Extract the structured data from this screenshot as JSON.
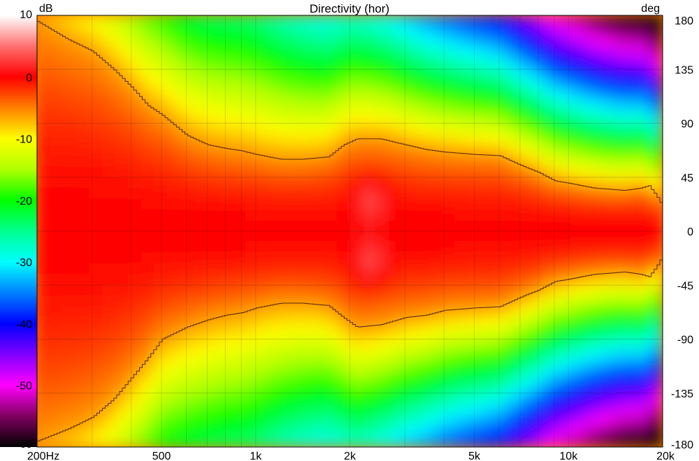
{
  "chart_data": {
    "type": "heatmap",
    "title": "Directivity (hor)",
    "colorbar_unit": "dB",
    "right_axis_unit": "deg",
    "x_scale": "log",
    "xlim": [
      200,
      20000
    ],
    "ylim": [
      -180,
      180
    ],
    "colorbar_range": [
      -60,
      10
    ],
    "x_ticks": [
      {
        "value": 200,
        "label": "200Hz"
      },
      {
        "value": 500,
        "label": "500"
      },
      {
        "value": 1000,
        "label": "1k"
      },
      {
        "value": 2000,
        "label": "2k"
      },
      {
        "value": 5000,
        "label": "5k"
      },
      {
        "value": 10000,
        "label": "10k"
      },
      {
        "value": 20000,
        "label": "20k"
      }
    ],
    "y_ticks": [
      {
        "value": 180,
        "label": "180"
      },
      {
        "value": 135,
        "label": "135"
      },
      {
        "value": 90,
        "label": "90"
      },
      {
        "value": 45,
        "label": "45"
      },
      {
        "value": 0,
        "label": "0"
      },
      {
        "value": -45,
        "label": "-45"
      },
      {
        "value": -90,
        "label": "-90"
      },
      {
        "value": -135,
        "label": "-135"
      },
      {
        "value": -180,
        "label": "-180"
      }
    ],
    "colorbar_ticks": [
      {
        "value": 10,
        "label": "10"
      },
      {
        "value": 0,
        "label": "0"
      },
      {
        "value": -10,
        "label": "-10"
      },
      {
        "value": -20,
        "label": "-20"
      },
      {
        "value": -30,
        "label": "-30"
      },
      {
        "value": -40,
        "label": "-40"
      },
      {
        "value": -50,
        "label": "-50"
      },
      {
        "value": -60,
        "label": "-60"
      }
    ],
    "colorscale": [
      {
        "db": 10,
        "color": "#ffffff"
      },
      {
        "db": 5,
        "color": "#ff7070"
      },
      {
        "db": 0,
        "color": "#ff0000"
      },
      {
        "db": -5,
        "color": "#ff8000"
      },
      {
        "db": -10,
        "color": "#ffff00"
      },
      {
        "db": -15,
        "color": "#b0ff00"
      },
      {
        "db": -20,
        "color": "#00ff00"
      },
      {
        "db": -25,
        "color": "#00ff90"
      },
      {
        "db": -30,
        "color": "#00ffff"
      },
      {
        "db": -35,
        "color": "#0080ff"
      },
      {
        "db": -40,
        "color": "#0000ff"
      },
      {
        "db": -45,
        "color": "#8000ff"
      },
      {
        "db": -50,
        "color": "#ff00ff"
      },
      {
        "db": -55,
        "color": "#800060"
      },
      {
        "db": -60,
        "color": "#000000"
      }
    ],
    "contour_upper": [
      [
        200,
        175
      ],
      [
        250,
        160
      ],
      [
        300,
        150
      ],
      [
        350,
        135
      ],
      [
        400,
        120
      ],
      [
        450,
        105
      ],
      [
        500,
        97
      ],
      [
        600,
        80
      ],
      [
        700,
        72
      ],
      [
        800,
        69
      ],
      [
        900,
        67
      ],
      [
        1000,
        64
      ],
      [
        1200,
        60
      ],
      [
        1400,
        60
      ],
      [
        1700,
        62
      ],
      [
        1900,
        72
      ],
      [
        2100,
        77
      ],
      [
        2500,
        77
      ],
      [
        3000,
        72
      ],
      [
        3500,
        68
      ],
      [
        4000,
        66
      ],
      [
        5000,
        64
      ],
      [
        6000,
        63
      ],
      [
        7000,
        55
      ],
      [
        8000,
        49
      ],
      [
        9000,
        42
      ],
      [
        10000,
        40
      ],
      [
        12000,
        36
      ],
      [
        15000,
        34
      ],
      [
        17000,
        36
      ],
      [
        18000,
        38
      ],
      [
        19000,
        30
      ],
      [
        20000,
        20
      ]
    ],
    "contour_lower": [
      [
        200,
        -175
      ],
      [
        250,
        -165
      ],
      [
        300,
        -155
      ],
      [
        350,
        -140
      ],
      [
        400,
        -122
      ],
      [
        450,
        -106
      ],
      [
        500,
        -90
      ],
      [
        600,
        -80
      ],
      [
        700,
        -74
      ],
      [
        800,
        -70
      ],
      [
        900,
        -68
      ],
      [
        1000,
        -64
      ],
      [
        1200,
        -60
      ],
      [
        1400,
        -60
      ],
      [
        1700,
        -62
      ],
      [
        1900,
        -72
      ],
      [
        2100,
        -80
      ],
      [
        2500,
        -78
      ],
      [
        3000,
        -72
      ],
      [
        3500,
        -70
      ],
      [
        4000,
        -66
      ],
      [
        5000,
        -64
      ],
      [
        6000,
        -63
      ],
      [
        7000,
        -55
      ],
      [
        8000,
        -49
      ],
      [
        9000,
        -42
      ],
      [
        10000,
        -40
      ],
      [
        12000,
        -36
      ],
      [
        15000,
        -34
      ],
      [
        17000,
        -36
      ],
      [
        18000,
        -38
      ],
      [
        19000,
        -30
      ],
      [
        20000,
        -20
      ]
    ]
  }
}
